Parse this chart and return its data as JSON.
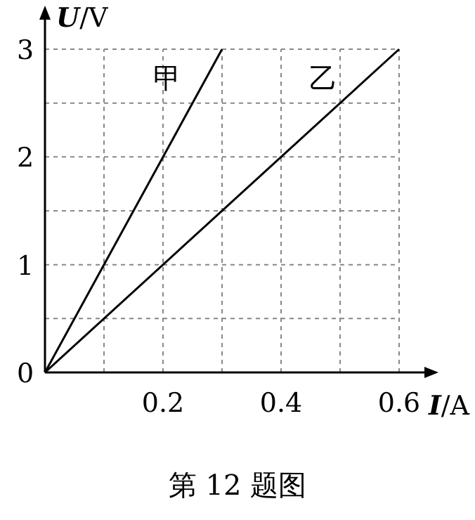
{
  "chart_data": {
    "type": "line",
    "xlabel": "I/A",
    "ylabel": "U/V",
    "xlim": [
      0,
      0.6
    ],
    "ylim": [
      0,
      3
    ],
    "xticks": [
      {
        "value": 0,
        "label": null
      },
      {
        "value": 0.1,
        "label": null
      },
      0.2,
      {
        "value": 0.3,
        "label": null
      },
      0.4,
      {
        "value": 0.5,
        "label": null
      },
      0.6
    ],
    "yticks": [
      0,
      {
        "value": 0.5,
        "label": null
      },
      1,
      {
        "value": 1.5,
        "label": null
      },
      2,
      {
        "value": 2.5,
        "label": null
      },
      3
    ],
    "grid": true,
    "series": [
      {
        "name": "甲",
        "color": "#000000",
        "x": [
          0,
          0.3
        ],
        "values": [
          0,
          3
        ]
      },
      {
        "name": "乙",
        "color": "#000000",
        "x": [
          0,
          0.6
        ],
        "values": [
          0,
          3
        ]
      }
    ],
    "annotations": [
      "第 12 题图"
    ]
  }
}
